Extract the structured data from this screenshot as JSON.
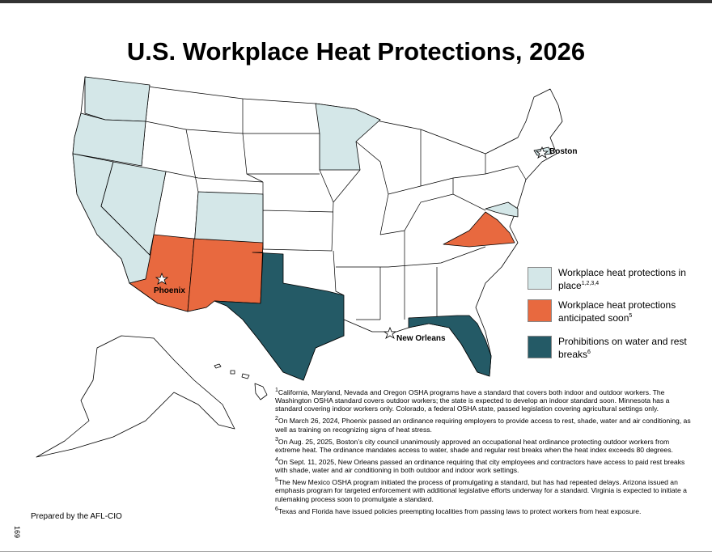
{
  "title": "U.S. Workplace Heat Protections, 2026",
  "cities": [
    {
      "label": "Boston"
    },
    {
      "label": "Phoenix"
    },
    {
      "label": "New Orleans"
    }
  ],
  "legend": [
    {
      "label": "Workplace heat protections in place",
      "sup": "1,2,3,4",
      "color": "#d4e7e8"
    },
    {
      "label": "Workplace heat protections anticipated soon",
      "sup": "5",
      "color": "#e8693f"
    },
    {
      "label": "Prohibitions on water and rest breaks",
      "sup": "6",
      "color": "#245a66"
    }
  ],
  "footnotes": [
    {
      "mark": "1",
      "text": "California, Maryland, Nevada and Oregon OSHA programs have a standard that covers both indoor and outdoor workers. The Washington OSHA standard covers outdoor workers; the state is expected to develop an indoor standard soon. Minnesota has a standard covering indoor workers only. Colorado, a federal OSHA state, passed legislation covering agricultural settings only."
    },
    {
      "mark": "2",
      "text": "On March 26, 2024, Phoenix passed an ordinance requiring employers to provide access to rest, shade, water and air conditioning, as well as training on recognizing signs of heat stress."
    },
    {
      "mark": "3",
      "text": "On Aug. 25, 2025, Boston’s city council unanimously approved an occupational heat ordinance protecting outdoor workers from extreme heat. The ordinance mandates access to water, shade and regular rest breaks when the heat index exceeds 80 degrees."
    },
    {
      "mark": "4",
      "text": "On Sept. 11, 2025, New Orleans passed an ordinance requiring that city employees and contractors have access to paid rest breaks with shade, water and air conditioning in both outdoor and indoor work settings."
    },
    {
      "mark": "5",
      "text": "The New Mexico OSHA program initiated the process of promulgating a standard, but has had repeated delays. Arizona issued an emphasis program for targeted enforcement with additional legislative efforts underway for a standard. Virginia is expected to initiate a rulemaking process soon to promulgate a standard."
    },
    {
      "mark": "6",
      "text": "Texas and Florida have issued policies preempting localities from passing laws to protect workers from heat exposure."
    }
  ],
  "credit": "Prepared by the AFL-CIO",
  "page_number": "169"
}
